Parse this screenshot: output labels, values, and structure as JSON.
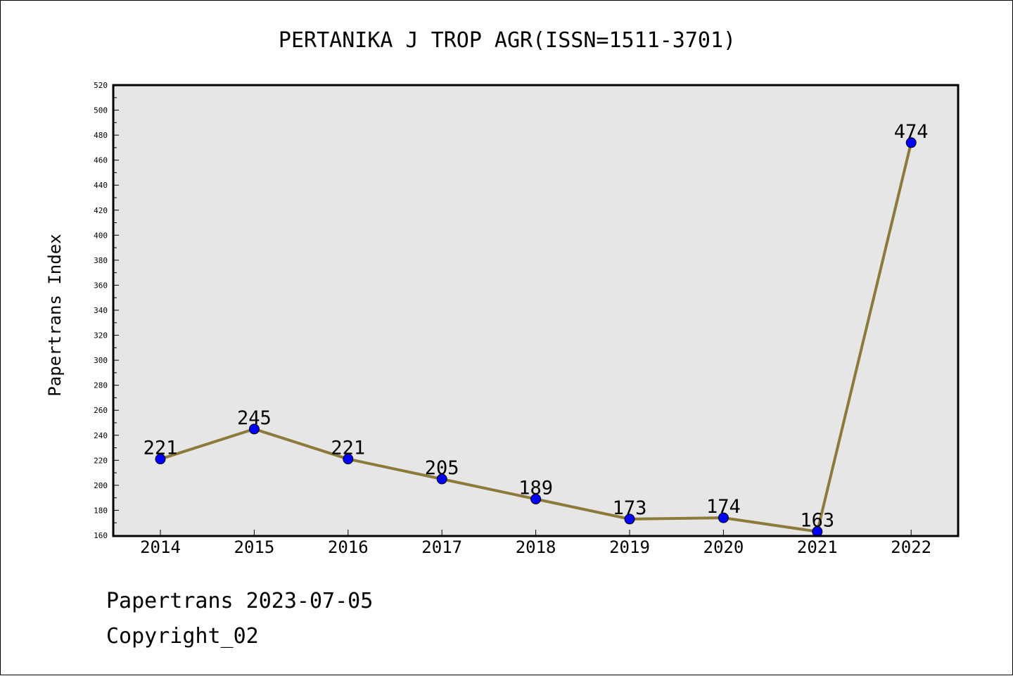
{
  "chart_data": {
    "type": "line",
    "title": "PERTANIKA J TROP AGR(ISSN=1511-3701)",
    "ylabel": "Papertrans Index",
    "xlabel": "",
    "categories": [
      "2014",
      "2015",
      "2016",
      "2017",
      "2018",
      "2019",
      "2020",
      "2021",
      "2022"
    ],
    "values": [
      221,
      245,
      221,
      205,
      189,
      173,
      174,
      163,
      474
    ],
    "ylim": [
      160,
      520
    ],
    "ytick_step": 20,
    "grid": false,
    "legend": "none",
    "colors": {
      "line": "#8b7a3a",
      "marker": "#0000ff",
      "plot_bg": "#e6e6e6"
    }
  },
  "footer": {
    "source": "Papertrans 2023-07-05",
    "copyright": "Copyright_02"
  }
}
